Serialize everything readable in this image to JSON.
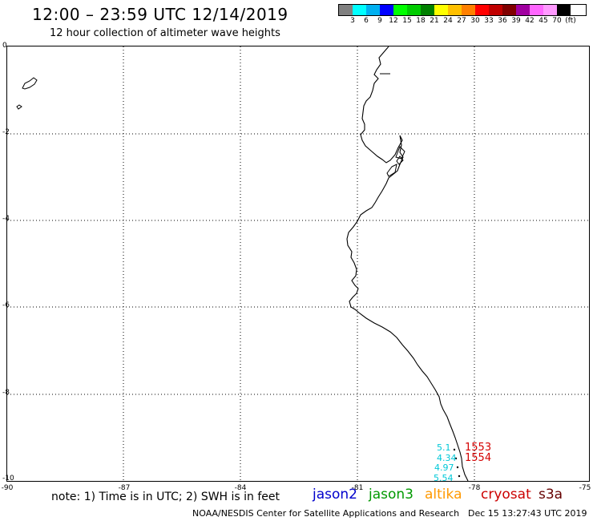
{
  "title": "12:00 – 23:59 UTC 12/14/2019",
  "subtitle": "12 hour collection of altimeter wave heights",
  "scale": {
    "colors": [
      "#808080",
      "#00ffff",
      "#00b0f0",
      "#0000ff",
      "#00ff00",
      "#00cc00",
      "#008000",
      "#ffff00",
      "#ffc000",
      "#ff8000",
      "#ff0000",
      "#c00000",
      "#800000",
      "#a000a0",
      "#ff66ff",
      "#ff99ff",
      "#000000"
    ],
    "labels": [
      "3",
      "6",
      "9",
      "12",
      "15",
      "18",
      "21",
      "24",
      "27",
      "30",
      "33",
      "36",
      "39",
      "42",
      "45",
      "70",
      "(ft)"
    ]
  },
  "axes": {
    "y_labels": [
      "0",
      "-2",
      "-4",
      "-6",
      "-8",
      "-10"
    ],
    "x_labels": [
      "-90",
      "-87",
      "-84",
      "-81",
      "-78",
      "-75"
    ]
  },
  "observations": {
    "swh": [
      "5.1",
      "4.34",
      "4.97",
      "5.54"
    ],
    "times": [
      "1553",
      "1554"
    ]
  },
  "note": "note: 1) Time is in UTC; 2) SWH is in feet",
  "legend": [
    {
      "label": "jason2",
      "color": "#0000cc"
    },
    {
      "label": "jason3",
      "color": "#009900"
    },
    {
      "label": "altika",
      "color": "#ff9900"
    },
    {
      "label": "cryosat",
      "color": "#cc0000"
    },
    {
      "label": "s3a",
      "color": "#660000"
    }
  ],
  "credit": "NOAA/NESDIS Center for Satellite Applications and Research",
  "timestamp": "Dec 15 13:27:43 UTC 2019"
}
